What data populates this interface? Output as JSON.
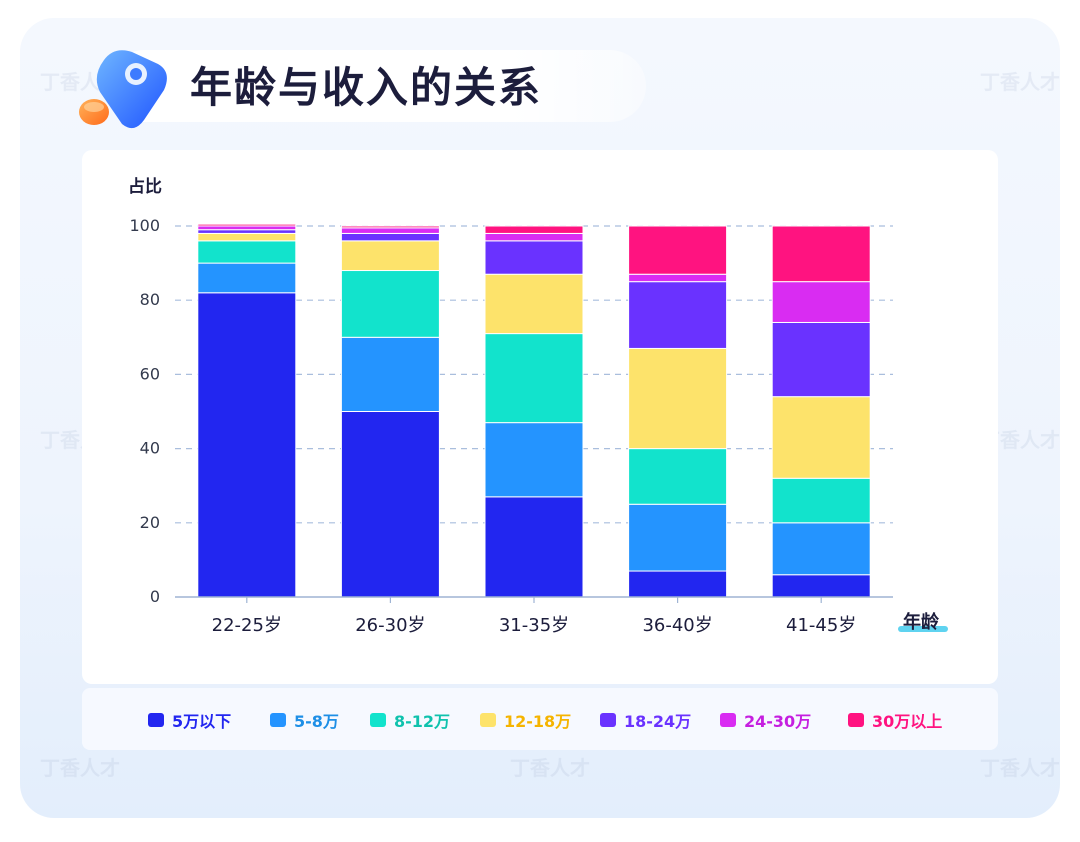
{
  "title": "年龄与收入的关系",
  "chart_data": {
    "type": "bar",
    "stacked": true,
    "ylabel": "占比",
    "xlabel": "年龄",
    "ylim": [
      0,
      100
    ],
    "yticks": [
      0,
      20,
      40,
      60,
      80,
      100
    ],
    "grid": "horizontal-dashed",
    "legend_position": "bottom",
    "categories": [
      "22-25岁",
      "26-30岁",
      "31-35岁",
      "36-40岁",
      "41-45岁"
    ],
    "series": [
      {
        "name": "5万以下",
        "color": "#2226f0",
        "values": [
          82,
          50,
          27,
          7,
          6
        ]
      },
      {
        "name": "5-8万",
        "color": "#2494ff",
        "values": [
          8,
          20,
          20,
          18,
          14
        ]
      },
      {
        "name": "8-12万",
        "color": "#12e3cc",
        "values": [
          6,
          18,
          24,
          15,
          12
        ]
      },
      {
        "name": "12-18万",
        "color": "#fde36b",
        "values": [
          2,
          8,
          16,
          27,
          22
        ]
      },
      {
        "name": "18-24万",
        "color": "#6a32ff",
        "values": [
          1,
          2,
          9,
          18,
          20
        ]
      },
      {
        "name": "24-30万",
        "color": "#d92cf2",
        "values": [
          1,
          1.5,
          2,
          2,
          11
        ]
      },
      {
        "name": "30万以上",
        "color": "#ff1380",
        "values": [
          0.5,
          0.5,
          2,
          13,
          15
        ]
      }
    ],
    "legend_text_colors": [
      "#2226f0",
      "#1e8fe6",
      "#0fc2ad",
      "#f5b400",
      "#6a32ff",
      "#c51fe0",
      "#ff1380"
    ]
  },
  "watermark": "丁香人才"
}
